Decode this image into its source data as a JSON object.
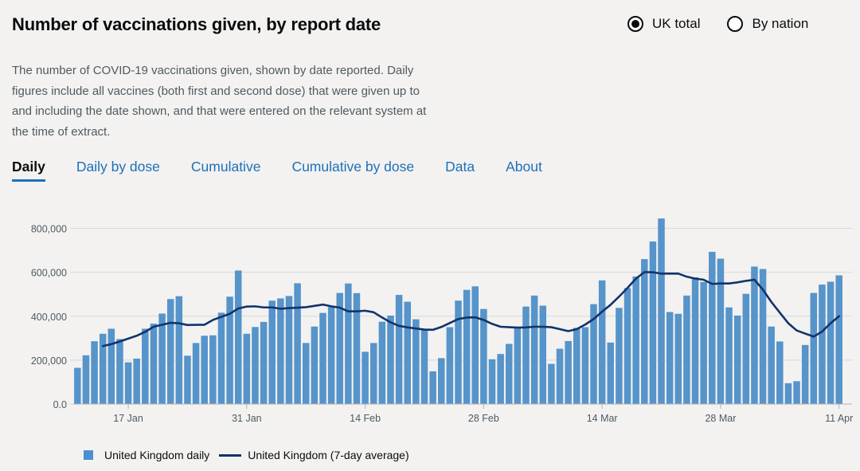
{
  "header": {
    "title": "Number of vaccinations given, by report date"
  },
  "view_options": [
    {
      "label": "UK total",
      "selected": true
    },
    {
      "label": "By nation",
      "selected": false
    }
  ],
  "description": "The number of COVID-19 vaccinations given, shown by date reported. Daily figures include all vaccines (both first and second dose) that were given up to and including the date shown, and that were entered on the relevant system at the time of extract.",
  "tabs": [
    {
      "label": "Daily",
      "active": true
    },
    {
      "label": "Daily by dose",
      "active": false
    },
    {
      "label": "Cumulative",
      "active": false
    },
    {
      "label": "Cumulative by dose",
      "active": false
    },
    {
      "label": "Data",
      "active": false
    },
    {
      "label": "About",
      "active": false
    }
  ],
  "colors": {
    "bar": "#5694ca",
    "line": "#12336b",
    "grid": "#d9d9d9",
    "link": "#1d70b8"
  },
  "chart_data": {
    "type": "bar",
    "dates": [
      "2021-01-11",
      "2021-01-12",
      "2021-01-13",
      "2021-01-14",
      "2021-01-15",
      "2021-01-16",
      "2021-01-17",
      "2021-01-18",
      "2021-01-19",
      "2021-01-20",
      "2021-01-21",
      "2021-01-22",
      "2021-01-23",
      "2021-01-24",
      "2021-01-25",
      "2021-01-26",
      "2021-01-27",
      "2021-01-28",
      "2021-01-29",
      "2021-01-30",
      "2021-01-31",
      "2021-02-01",
      "2021-02-02",
      "2021-02-03",
      "2021-02-04",
      "2021-02-05",
      "2021-02-06",
      "2021-02-07",
      "2021-02-08",
      "2021-02-09",
      "2021-02-10",
      "2021-02-11",
      "2021-02-12",
      "2021-02-13",
      "2021-02-14",
      "2021-02-15",
      "2021-02-16",
      "2021-02-17",
      "2021-02-18",
      "2021-02-19",
      "2021-02-20",
      "2021-02-21",
      "2021-02-22",
      "2021-02-23",
      "2021-02-24",
      "2021-02-25",
      "2021-02-26",
      "2021-02-27",
      "2021-02-28",
      "2021-03-01",
      "2021-03-02",
      "2021-03-03",
      "2021-03-04",
      "2021-03-05",
      "2021-03-06",
      "2021-03-07",
      "2021-03-08",
      "2021-03-09",
      "2021-03-10",
      "2021-03-11",
      "2021-03-12",
      "2021-03-13",
      "2021-03-14",
      "2021-03-15",
      "2021-03-16",
      "2021-03-17",
      "2021-03-18",
      "2021-03-19",
      "2021-03-20",
      "2021-03-21",
      "2021-03-22",
      "2021-03-23",
      "2021-03-24",
      "2021-03-25",
      "2021-03-26",
      "2021-03-27",
      "2021-03-28",
      "2021-03-29",
      "2021-03-30",
      "2021-03-31",
      "2021-04-01",
      "2021-04-02",
      "2021-04-03",
      "2021-04-04",
      "2021-04-05",
      "2021-04-06",
      "2021-04-07",
      "2021-04-08",
      "2021-04-09",
      "2021-04-10",
      "2021-04-11"
    ],
    "series": [
      {
        "name": "United Kingdom daily",
        "kind": "bar",
        "values": [
          165000,
          222000,
          286000,
          320000,
          343000,
          296000,
          190000,
          207000,
          343000,
          366000,
          412000,
          478000,
          491000,
          220000,
          278000,
          311000,
          313000,
          416000,
          489000,
          608000,
          320000,
          351000,
          374000,
          471000,
          481000,
          492000,
          550000,
          278000,
          353000,
          415000,
          442000,
          506000,
          549000,
          505000,
          238000,
          278000,
          375000,
          403000,
          497000,
          466000,
          386000,
          341000,
          149000,
          209000,
          350000,
          471000,
          520000,
          536000,
          433000,
          204000,
          228000,
          274000,
          349000,
          444000,
          494000,
          448000,
          183000,
          252000,
          287000,
          347000,
          350000,
          455000,
          563000,
          280000,
          438000,
          528000,
          581000,
          660000,
          740000,
          845000,
          419000,
          411000,
          494000,
          577000,
          556000,
          693000,
          662000,
          440000,
          403000,
          502000,
          626000,
          615000,
          353000,
          285000,
          95000,
          104000,
          269000,
          506000,
          544000,
          557000,
          586000
        ]
      },
      {
        "name": "United Kingdom (7-day average)",
        "kind": "line",
        "values": [
          null,
          null,
          null,
          264000,
          273000,
          285000,
          298000,
          311000,
          329000,
          352000,
          361000,
          370000,
          368000,
          360000,
          361000,
          361000,
          383000,
          397000,
          411000,
          435000,
          444000,
          445000,
          440000,
          440000,
          434000,
          437000,
          439000,
          441000,
          447000,
          453000,
          445000,
          439000,
          422000,
          422000,
          425000,
          418000,
          394000,
          372000,
          356000,
          349000,
          344000,
          339000,
          338000,
          351000,
          369000,
          387000,
          394000,
          395000,
          383000,
          365000,
          352000,
          350000,
          348000,
          349000,
          352000,
          352000,
          350000,
          341000,
          332000,
          341000,
          362000,
          387000,
          421000,
          452000,
          489000,
          529000,
          571000,
          601000,
          600000,
          594000,
          594000,
          594000,
          580000,
          571000,
          566000,
          547000,
          549000,
          549000,
          554000,
          561000,
          566000,
          521000,
          465000,
          416000,
          368000,
          335000,
          321000,
          307000,
          330000,
          368000,
          400000
        ]
      }
    ],
    "x_ticks": [
      "17 Jan",
      "31 Jan",
      "14 Feb",
      "28 Feb",
      "14 Mar",
      "28 Mar",
      "11 Apr"
    ],
    "y_ticks": [
      "0.0",
      "200,000",
      "400,000",
      "600,000",
      "800,000"
    ],
    "ylim": [
      0,
      860000
    ],
    "grid": true,
    "legend_placement": "bottom-left",
    "legend": [
      {
        "label": "United Kingdom daily",
        "symbol": "square"
      },
      {
        "label": "United Kingdom (7-day average)",
        "symbol": "line"
      }
    ]
  }
}
